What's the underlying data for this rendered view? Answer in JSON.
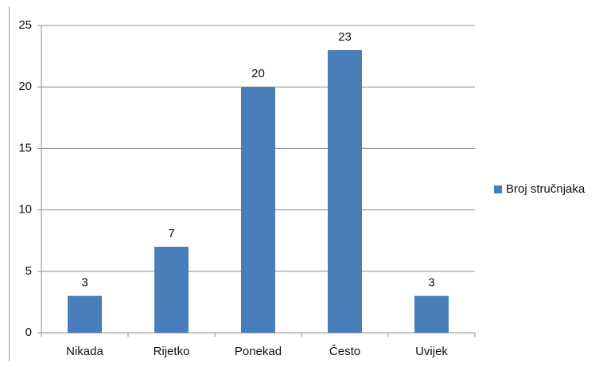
{
  "chart_data": {
    "type": "bar",
    "categories": [
      "Nikada",
      "Rijetko",
      "Ponekad",
      "Često",
      "Uvijek"
    ],
    "series": [
      {
        "name": "Broj stručnjaka",
        "values": [
          3,
          7,
          20,
          23,
          3
        ]
      }
    ],
    "ylim": [
      0,
      25
    ],
    "yticks": [
      0,
      5,
      10,
      15,
      20,
      25
    ],
    "grid": true,
    "legend": "right",
    "colors": {
      "bar": "#4a7ebb",
      "grid": "#8c8c8c",
      "axis": "#8c8c8c"
    },
    "data_labels": true
  }
}
